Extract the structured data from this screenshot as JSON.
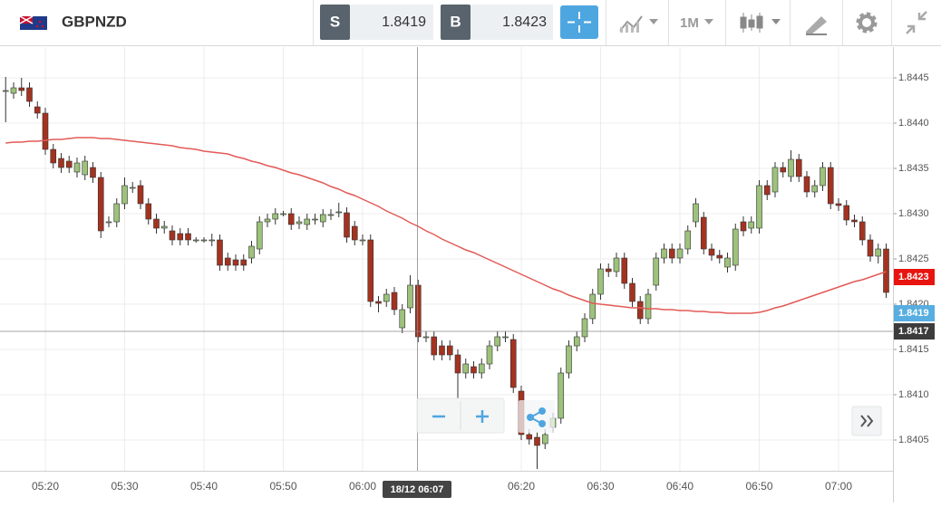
{
  "toolbar": {
    "symbol": "GBPNZD",
    "sell_label": "S",
    "sell_price": "1.8419",
    "buy_label": "B",
    "buy_price": "1.8423",
    "timeframe": "1M"
  },
  "chart_data": {
    "type": "candlestick",
    "categories": [
      null,
      null,
      null,
      null,
      null,
      "05:20",
      null,
      null,
      null,
      null,
      null,
      null,
      null,
      null,
      null,
      "05:30",
      null,
      null,
      null,
      null,
      null,
      null,
      null,
      null,
      null,
      "05:40",
      null,
      null,
      null,
      null,
      null,
      null,
      null,
      null,
      null,
      "05:50",
      null,
      null,
      null,
      null,
      null,
      null,
      null,
      null,
      null,
      "06:00",
      null,
      null,
      null,
      null,
      null,
      null,
      null,
      null,
      null,
      null,
      null,
      null,
      null,
      null,
      null,
      null,
      null,
      null,
      null,
      "06:20",
      null,
      null,
      null,
      null,
      null,
      null,
      null,
      null,
      null,
      "06:30",
      null,
      null,
      null,
      null,
      null,
      null,
      null,
      null,
      null,
      "06:40",
      null,
      null,
      null,
      null,
      null,
      null,
      null,
      null,
      null,
      "06:50",
      null,
      null,
      null,
      null,
      null,
      null,
      null,
      null,
      null,
      "07:00",
      null,
      null,
      null,
      null,
      null,
      null
    ],
    "open": [
      1.84436,
      1.84433,
      1.84439,
      1.84439,
      1.84418,
      1.84411,
      1.84371,
      1.84361,
      1.84358,
      1.84346,
      1.84343,
      1.84351,
      1.8434,
      1.84291,
      1.84291,
      1.84311,
      1.84329,
      1.84331,
      1.84311,
      1.84294,
      1.84284,
      1.84281,
      1.84278,
      1.84278,
      1.84271,
      1.84271,
      1.84271,
      1.84271,
      1.84251,
      1.84249,
      1.84249,
      1.84251,
      1.84261,
      1.84291,
      1.84294,
      1.843,
      1.843,
      1.84289,
      1.84288,
      1.84294,
      1.84291,
      1.84299,
      1.84302,
      1.84301,
      1.84286,
      1.84271,
      1.84271,
      1.84203,
      1.84203,
      1.84213,
      1.84174,
      1.84196,
      1.84221,
      1.84164,
      1.84164,
      1.84154,
      1.84154,
      1.84144,
      1.84124,
      1.84131,
      1.84124,
      1.84134,
      1.84154,
      1.84164,
      1.84161,
      1.84104,
      1.84056,
      1.84053,
      1.84046,
      1.84064,
      1.84074,
      1.84124,
      1.84154,
      1.84164,
      1.84184,
      1.84211,
      1.84239,
      1.84236,
      1.84251,
      1.84223,
      1.84203,
      1.84184,
      1.84221,
      1.84251,
      1.84261,
      1.84251,
      1.84261,
      1.84291,
      1.84296,
      1.84261,
      1.84254,
      1.84241,
      1.84243,
      1.84291,
      1.84284,
      1.84284,
      1.84331,
      1.84324,
      1.84351,
      1.84341,
      1.8436,
      1.84341,
      1.84324,
      1.84331,
      1.84351,
      1.84311,
      1.84309,
      1.84293,
      1.84291,
      1.84271,
      1.84253,
      1.84261
    ],
    "high": [
      1.84451,
      1.84445,
      1.8445,
      1.84445,
      1.84424,
      1.84417,
      1.84377,
      1.84367,
      1.84364,
      1.84362,
      1.84364,
      1.84357,
      1.84346,
      1.84297,
      1.84317,
      1.8434,
      1.84335,
      1.84337,
      1.84317,
      1.843,
      1.84292,
      1.84287,
      1.84284,
      1.84284,
      1.84274,
      1.84274,
      1.84278,
      1.84277,
      1.84257,
      1.84255,
      1.84255,
      1.8427,
      1.84297,
      1.843,
      1.84306,
      1.84303,
      1.84306,
      1.84297,
      1.843,
      1.843,
      1.84305,
      1.84305,
      1.84312,
      1.84307,
      1.84292,
      1.84277,
      1.84277,
      1.84209,
      1.84217,
      1.84219,
      1.842,
      1.84232,
      1.84227,
      1.8417,
      1.8417,
      1.8416,
      1.8416,
      1.8415,
      1.8414,
      1.84137,
      1.8414,
      1.8416,
      1.8417,
      1.8417,
      1.84167,
      1.8411,
      1.84062,
      1.84059,
      1.84062,
      1.8408,
      1.8413,
      1.8416,
      1.8417,
      1.8419,
      1.84217,
      1.84245,
      1.84245,
      1.84257,
      1.84257,
      1.84229,
      1.84209,
      1.84217,
      1.84257,
      1.84267,
      1.84267,
      1.84267,
      1.84287,
      1.84317,
      1.84302,
      1.84267,
      1.8426,
      1.84257,
      1.84289,
      1.84297,
      1.84297,
      1.84337,
      1.84337,
      1.84357,
      1.84357,
      1.8437,
      1.84366,
      1.84347,
      1.84337,
      1.84357,
      1.84357,
      1.84317,
      1.84315,
      1.84299,
      1.84297,
      1.84277,
      1.84267,
      1.84267
    ],
    "low": [
      1.84401,
      1.84427,
      1.8443,
      1.84418,
      1.84405,
      1.84365,
      1.8435,
      1.84345,
      1.84345,
      1.8434,
      1.84337,
      1.84334,
      1.84273,
      1.84285,
      1.84285,
      1.84305,
      1.84323,
      1.84305,
      1.84288,
      1.84278,
      1.84278,
      1.84265,
      1.84265,
      1.84265,
      1.84268,
      1.84268,
      1.84264,
      1.84237,
      1.84237,
      1.84237,
      1.84237,
      1.84245,
      1.84255,
      1.84285,
      1.84288,
      1.84297,
      1.84282,
      1.84283,
      1.84282,
      1.84288,
      1.84285,
      1.84293,
      1.84296,
      1.84268,
      1.84265,
      1.84265,
      1.84197,
      1.84191,
      1.84197,
      1.84188,
      1.84168,
      1.8419,
      1.84158,
      1.84158,
      1.84138,
      1.84138,
      1.84138,
      1.84096,
      1.84118,
      1.84118,
      1.84118,
      1.84128,
      1.84148,
      1.84158,
      1.84102,
      1.8405,
      1.84045,
      1.84018,
      1.8404,
      1.84058,
      1.84068,
      1.84118,
      1.84148,
      1.84158,
      1.84178,
      1.84205,
      1.8423,
      1.8423,
      1.84217,
      1.84197,
      1.84178,
      1.84178,
      1.84215,
      1.84245,
      1.84245,
      1.84245,
      1.84255,
      1.84285,
      1.84255,
      1.84248,
      1.84245,
      1.84235,
      1.84237,
      1.84275,
      1.84278,
      1.84278,
      1.84315,
      1.84318,
      1.8434,
      1.84335,
      1.84335,
      1.84318,
      1.84318,
      1.84325,
      1.84305,
      1.84303,
      1.84287,
      1.84285,
      1.84265,
      1.84247,
      1.84245,
      1.84207
    ],
    "close": [
      1.84436,
      1.84439,
      1.84436,
      1.84424,
      1.84411,
      1.84371,
      1.84356,
      1.84351,
      1.84351,
      1.84356,
      1.84358,
      1.8434,
      1.84281,
      1.84291,
      1.84311,
      1.84331,
      1.84329,
      1.84311,
      1.84294,
      1.84284,
      1.84286,
      1.84271,
      1.84271,
      1.84271,
      1.84271,
      1.84271,
      1.84271,
      1.84243,
      1.84243,
      1.84243,
      1.84243,
      1.84264,
      1.84291,
      1.84294,
      1.843,
      1.843,
      1.84288,
      1.84291,
      1.84294,
      1.84294,
      1.84299,
      1.84299,
      1.84302,
      1.84274,
      1.84271,
      1.84271,
      1.84203,
      1.84201,
      1.84211,
      1.84194,
      1.84194,
      1.84221,
      1.84164,
      1.84164,
      1.84144,
      1.84144,
      1.84144,
      1.84124,
      1.84134,
      1.84124,
      1.84134,
      1.84154,
      1.84164,
      1.84164,
      1.84108,
      1.84056,
      1.84051,
      1.84044,
      1.84056,
      1.84074,
      1.84124,
      1.84154,
      1.84164,
      1.84184,
      1.84211,
      1.84239,
      1.84236,
      1.84251,
      1.84223,
      1.84203,
      1.84184,
      1.84211,
      1.84251,
      1.84261,
      1.84251,
      1.84261,
      1.84281,
      1.84311,
      1.84261,
      1.84254,
      1.84251,
      1.84251,
      1.84283,
      1.84281,
      1.84291,
      1.84331,
      1.84321,
      1.84351,
      1.84346,
      1.8436,
      1.84341,
      1.84324,
      1.84331,
      1.84351,
      1.84311,
      1.84309,
      1.84293,
      1.84291,
      1.84271,
      1.84253,
      1.84261,
      1.84213
    ],
    "ma": [
      1.84378,
      1.84379,
      1.84379,
      1.8438,
      1.8438,
      1.84381,
      1.84382,
      1.84382,
      1.84383,
      1.84384,
      1.84384,
      1.84384,
      1.84383,
      1.84383,
      1.84382,
      1.84381,
      1.8438,
      1.84379,
      1.84378,
      1.84377,
      1.84376,
      1.84375,
      1.84373,
      1.84372,
      1.84371,
      1.84369,
      1.84368,
      1.84367,
      1.84366,
      1.84363,
      1.84361,
      1.84358,
      1.84356,
      1.84353,
      1.84351,
      1.84348,
      1.84345,
      1.84343,
      1.8434,
      1.84337,
      1.84334,
      1.8433,
      1.84327,
      1.84323,
      1.8432,
      1.84316,
      1.84312,
      1.84308,
      1.84303,
      1.84299,
      1.84295,
      1.8429,
      1.84286,
      1.84281,
      1.84277,
      1.84272,
      1.84268,
      1.84264,
      1.8426,
      1.84257,
      1.84253,
      1.84249,
      1.84245,
      1.84241,
      1.84237,
      1.84233,
      1.84229,
      1.84225,
      1.84221,
      1.84217,
      1.84214,
      1.8421,
      1.84207,
      1.84204,
      1.84201,
      1.842,
      1.84199,
      1.84198,
      1.84197,
      1.84196,
      1.84196,
      1.84195,
      1.84195,
      1.84194,
      1.84194,
      1.84193,
      1.84193,
      1.84192,
      1.84192,
      1.84191,
      1.84191,
      1.8419,
      1.8419,
      1.8419,
      1.8419,
      1.84191,
      1.84193,
      1.84196,
      1.84198,
      1.84201,
      1.84204,
      1.84207,
      1.8421,
      1.84213,
      1.84216,
      1.84219,
      1.84222,
      1.84225,
      1.84227,
      1.8423,
      1.84233,
      1.84236
    ],
    "up_color": "#9dc27c",
    "down_color": "#a33320",
    "ma_color": "#e35a57",
    "ylim": [
      1.84016,
      1.84484
    ],
    "yticks": [
      1.8405,
      {
        "value": 1.841,
        "label": "1.8410"
      },
      1.8415,
      {
        "value": 1.842,
        "label": "1.8420"
      },
      1.8425,
      {
        "value": 1.843,
        "label": "1.8430"
      },
      1.8435,
      {
        "value": 1.844,
        "label": "1.8440"
      },
      1.8445
    ],
    "grid": true,
    "ask": 1.8423,
    "bid": 1.8419,
    "crosshair": {
      "price": 1.8417,
      "time": "18/12 06:07"
    }
  }
}
